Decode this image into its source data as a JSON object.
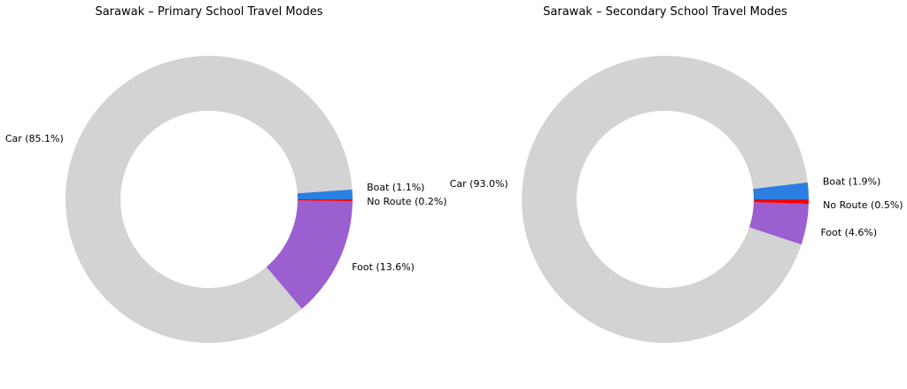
{
  "chart_data": [
    {
      "type": "pie",
      "donut": true,
      "title": "Sarawak – Primary School Travel Modes",
      "slices": [
        {
          "label": "Boat (1.1%)",
          "name": "Boat",
          "value": 1.1,
          "color": "#2a7fe0"
        },
        {
          "label": "Car (85.1%)",
          "name": "Car",
          "value": 85.1,
          "color": "#d3d3d3"
        },
        {
          "label": "Foot (13.6%)",
          "name": "Foot",
          "value": 13.6,
          "color": "#9b5fd0"
        },
        {
          "label": "No Route (0.2%)",
          "name": "No Route",
          "value": 0.2,
          "color": "#ff0000"
        }
      ],
      "startangle": 0,
      "counterclockwise": true
    },
    {
      "type": "pie",
      "donut": true,
      "title": "Sarawak – Secondary School Travel Modes",
      "slices": [
        {
          "label": "Boat (1.9%)",
          "name": "Boat",
          "value": 1.9,
          "color": "#2a7fe0"
        },
        {
          "label": "Car (93.0%)",
          "name": "Car",
          "value": 93.0,
          "color": "#d3d3d3"
        },
        {
          "label": "Foot (4.6%)",
          "name": "Foot",
          "value": 4.6,
          "color": "#9b5fd0"
        },
        {
          "label": "No Route (0.5%)",
          "name": "No Route",
          "value": 0.5,
          "color": "#ff0000"
        }
      ],
      "startangle": 0,
      "counterclockwise": true
    }
  ]
}
